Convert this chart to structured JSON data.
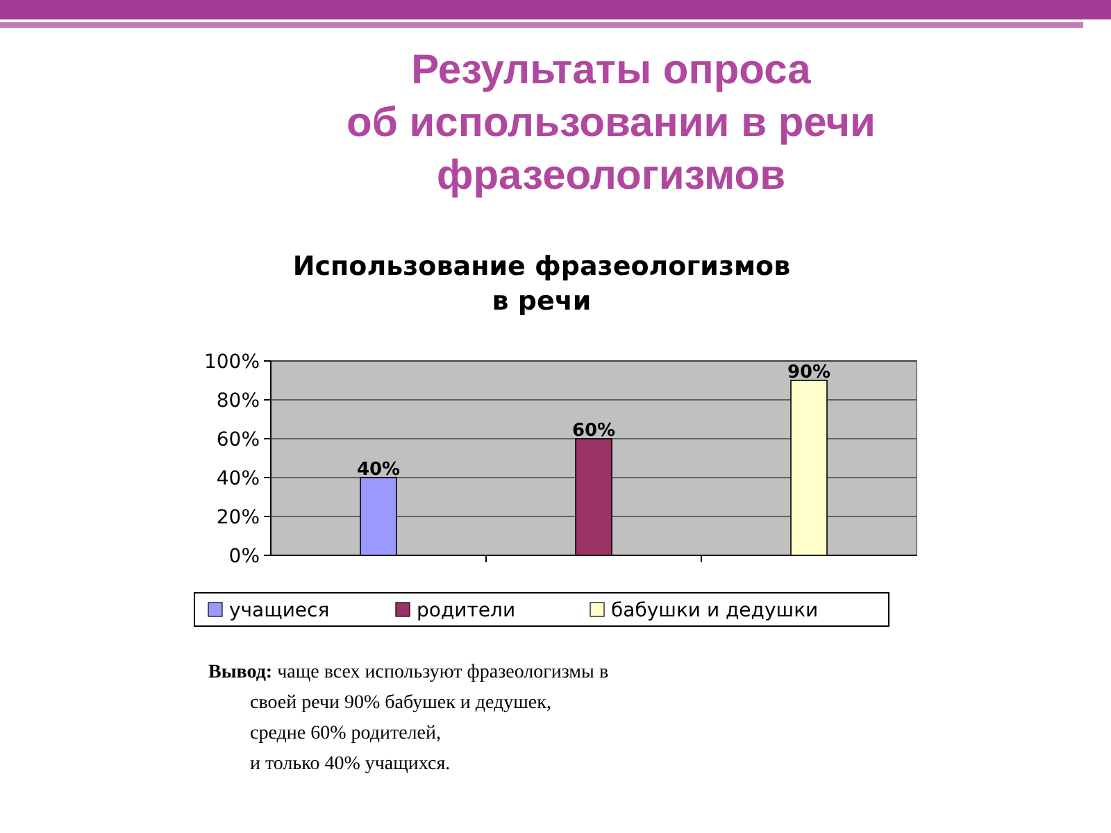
{
  "chart_data": {
    "type": "bar",
    "title": "Результаты опроса\nоб использовании в речи\nфразеологизмов",
    "subtitle": "Использование фразеологизмов\nв речи",
    "categories": [
      null,
      null,
      null
    ],
    "series": [
      {
        "name": "учащиеся",
        "color": "#9999ff",
        "values": [
          40,
          null,
          null
        ],
        "value_labels": [
          "40%",
          null,
          null
        ]
      },
      {
        "name": "родители",
        "color": "#993366",
        "values": [
          null,
          60,
          null
        ],
        "value_labels": [
          null,
          "60%",
          null
        ]
      },
      {
        "name": "бабушки и дедушки",
        "color": "#ffffcc",
        "values": [
          null,
          null,
          90
        ],
        "value_labels": [
          null,
          null,
          "90%"
        ]
      }
    ],
    "ylim": [
      0,
      100
    ],
    "yticks": [
      {
        "value": 0,
        "label": "0%"
      },
      {
        "value": 20,
        "label": "20%"
      },
      {
        "value": 40,
        "label": "40%"
      },
      {
        "value": 60,
        "label": "60%"
      },
      {
        "value": 80,
        "label": "80%"
      },
      {
        "value": 100,
        "label": "100%"
      }
    ],
    "grid": "y",
    "legend": "bottom",
    "annotations": [
      "Вывод: чаще всех используют фразеологизмы в",
      "своей речи 90% бабушек и дедушек,",
      "средне 60% родителей,",
      "и только 40% учащихся."
    ]
  }
}
